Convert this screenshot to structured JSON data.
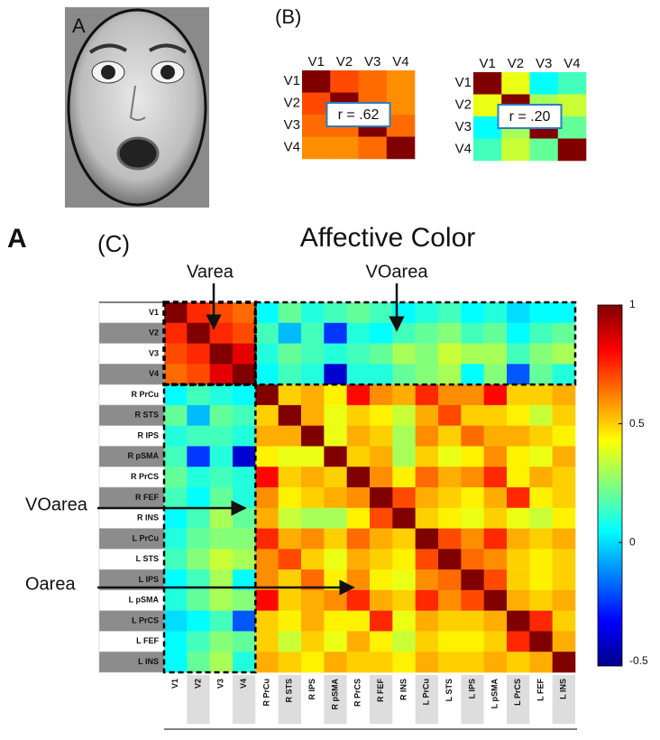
{
  "figure_label": "A",
  "face": {
    "label": "A"
  },
  "panel_b": {
    "label": "(B)"
  },
  "chart_data": [
    {
      "type": "heatmap",
      "panel": "(C)",
      "title": "Affective Color",
      "colormap": "jet",
      "categories": [
        "V1",
        "V2",
        "V3",
        "V4",
        "R PrCu",
        "R STS",
        "R IPS",
        "R pSMA",
        "R PrCS",
        "R FEF",
        "R INS",
        "L PrCu",
        "L STS",
        "L IPS",
        "L pSMA",
        "L PrCS",
        "L FEF",
        "L INS"
      ],
      "zlim": [
        -0.52,
        1
      ],
      "zticks": [
        1,
        0.5,
        0,
        -0.5
      ],
      "annotations": [
        "Varea",
        "VOarea",
        "VOarea",
        "Oarea"
      ],
      "values": [
        [
          1,
          0.75,
          0.7,
          0.65,
          0.05,
          0.2,
          0.1,
          0.15,
          0.2,
          0.15,
          0.05,
          0.1,
          0.15,
          0.05,
          0.1,
          0,
          0.05,
          0.05
        ],
        [
          0.75,
          1,
          0.75,
          0.7,
          0.15,
          -0.05,
          0.15,
          -0.25,
          0.1,
          0.05,
          0.15,
          0.2,
          0.25,
          0.15,
          0.2,
          0.05,
          0.15,
          0.2
        ],
        [
          0.7,
          0.75,
          1,
          0.85,
          0.1,
          0.2,
          0.15,
          0.1,
          0.15,
          0.2,
          0.3,
          0.25,
          0.35,
          0.3,
          0.3,
          0.15,
          0.25,
          0.3
        ],
        [
          0.65,
          0.7,
          0.85,
          1,
          0.05,
          0.15,
          0.1,
          -0.4,
          0.1,
          0.1,
          0.2,
          0.25,
          0.3,
          0.05,
          0.25,
          -0.2,
          0.2,
          0.1
        ],
        [
          0.05,
          0.15,
          0.1,
          0.05,
          1,
          0.5,
          0.55,
          0.45,
          0.8,
          0.6,
          0.55,
          0.75,
          0.6,
          0.6,
          0.8,
          0.5,
          0.5,
          0.55
        ],
        [
          0.2,
          -0.05,
          0.2,
          0.15,
          0.5,
          1,
          0.55,
          0.4,
          0.5,
          0.45,
          0.35,
          0.55,
          0.7,
          0.5,
          0.5,
          0.45,
          0.35,
          0.5
        ],
        [
          0.1,
          0.15,
          0.15,
          0.1,
          0.55,
          0.55,
          1,
          0.4,
          0.55,
          0.5,
          0.3,
          0.6,
          0.5,
          0.65,
          0.55,
          0.55,
          0.5,
          0.45
        ],
        [
          0.15,
          -0.25,
          0.1,
          -0.4,
          0.45,
          0.4,
          0.4,
          1,
          0.5,
          0.55,
          0.3,
          0.5,
          0.4,
          0.45,
          0.6,
          0.45,
          0.4,
          0.55
        ],
        [
          0.2,
          0.1,
          0.15,
          0.1,
          0.8,
          0.5,
          0.55,
          0.5,
          1,
          0.6,
          0.45,
          0.65,
          0.55,
          0.6,
          0.75,
          0.45,
          0.55,
          0.5
        ],
        [
          0.15,
          0.05,
          0.2,
          0.1,
          0.6,
          0.45,
          0.5,
          0.55,
          0.6,
          1,
          0.7,
          0.55,
          0.5,
          0.45,
          0.55,
          0.75,
          0.45,
          0.5
        ],
        [
          0.05,
          0.15,
          0.3,
          0.2,
          0.55,
          0.35,
          0.3,
          0.3,
          0.45,
          0.7,
          1,
          0.5,
          0.45,
          0.4,
          0.5,
          0.4,
          0.35,
          0.45
        ],
        [
          0.1,
          0.2,
          0.25,
          0.25,
          0.75,
          0.55,
          0.6,
          0.5,
          0.65,
          0.55,
          0.5,
          1,
          0.7,
          0.6,
          0.75,
          0.55,
          0.5,
          0.55
        ],
        [
          0.15,
          0.25,
          0.35,
          0.3,
          0.6,
          0.7,
          0.5,
          0.4,
          0.55,
          0.5,
          0.45,
          0.7,
          1,
          0.65,
          0.6,
          0.5,
          0.45,
          0.5
        ],
        [
          0.05,
          0.15,
          0.3,
          0.05,
          0.6,
          0.5,
          0.65,
          0.45,
          0.6,
          0.45,
          0.4,
          0.6,
          0.65,
          1,
          0.7,
          0.5,
          0.45,
          0.5
        ],
        [
          0.1,
          0.2,
          0.3,
          0.25,
          0.8,
          0.5,
          0.55,
          0.6,
          0.75,
          0.55,
          0.5,
          0.75,
          0.6,
          0.7,
          1,
          0.55,
          0.5,
          0.55
        ],
        [
          0,
          0.05,
          0.15,
          -0.2,
          0.5,
          0.45,
          0.55,
          0.45,
          0.45,
          0.75,
          0.4,
          0.55,
          0.5,
          0.5,
          0.55,
          1,
          0.75,
          0.5
        ],
        [
          0.05,
          0.15,
          0.25,
          0.2,
          0.5,
          0.35,
          0.5,
          0.4,
          0.55,
          0.45,
          0.35,
          0.5,
          0.45,
          0.45,
          0.5,
          0.75,
          1,
          0.55
        ],
        [
          0.05,
          0.2,
          0.3,
          0.1,
          0.55,
          0.5,
          0.45,
          0.55,
          0.5,
          0.5,
          0.45,
          0.55,
          0.5,
          0.5,
          0.55,
          0.5,
          0.55,
          1
        ]
      ]
    },
    {
      "type": "heatmap",
      "colormap": "jet",
      "zlim": [
        -0.52,
        1
      ],
      "categories": [
        "V1",
        "V2",
        "V3",
        "V4"
      ],
      "annotations": [
        "r  = .62"
      ],
      "values": [
        [
          1,
          0.7,
          0.65,
          0.6
        ],
        [
          0.7,
          1,
          0.65,
          0.6
        ],
        [
          0.65,
          0.65,
          1,
          0.65
        ],
        [
          0.6,
          0.6,
          0.65,
          1
        ]
      ]
    },
    {
      "type": "heatmap",
      "colormap": "jet",
      "zlim": [
        -0.52,
        1
      ],
      "categories": [
        "V1",
        "V2",
        "V3",
        "V4"
      ],
      "annotations": [
        "r  = .20"
      ],
      "values": [
        [
          1,
          0.4,
          0.05,
          0.15
        ],
        [
          0.4,
          1,
          0.3,
          0.35
        ],
        [
          0.05,
          0.3,
          1,
          0.2
        ],
        [
          0.15,
          0.35,
          0.2,
          1
        ]
      ]
    }
  ]
}
